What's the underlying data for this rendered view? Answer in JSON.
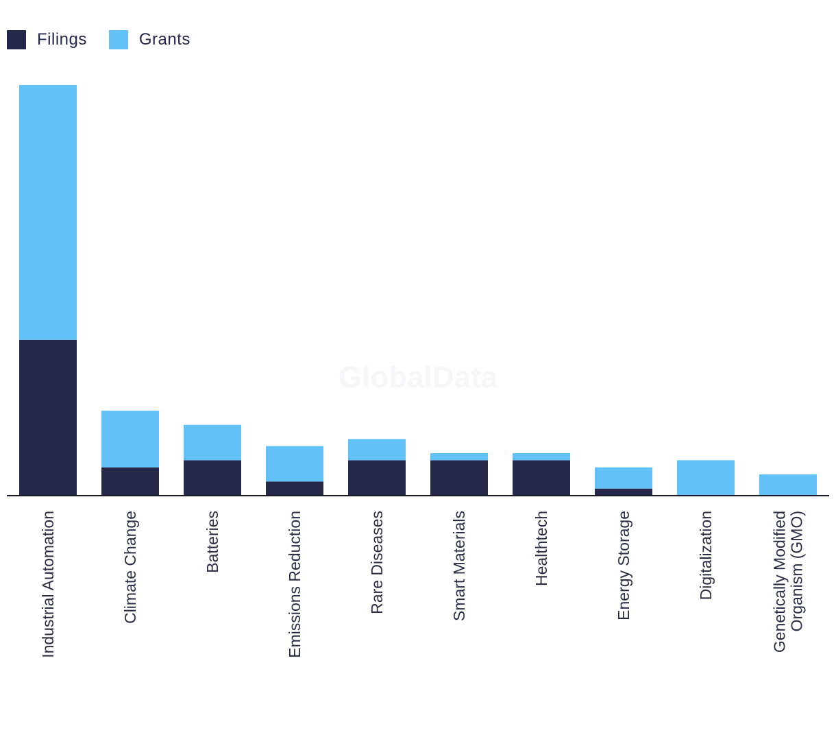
{
  "watermark": "GlobalData",
  "colors": {
    "filings": "#26284a",
    "grants": "#62c2f8",
    "axis": "#1a1a2a"
  },
  "legend": [
    {
      "label": "Filings",
      "color": "#26284a"
    },
    {
      "label": "Grants",
      "color": "#62c2f8"
    }
  ],
  "chart_data": {
    "type": "bar",
    "stacked": true,
    "title": "",
    "xlabel": "",
    "ylabel": "",
    "ylim": [
      0,
      58
    ],
    "categories": [
      "Industrial Automation",
      "Climate Change",
      "Batteries",
      "Emissions Reduction",
      "Rare Diseases",
      "Smart Materials",
      "Healthtech",
      "Energy Storage",
      "Digitalization",
      "Genetically Modified Organism (GMO)"
    ],
    "series": [
      {
        "name": "Filings",
        "values": [
          22,
          4,
          5,
          2,
          5,
          5,
          5,
          1,
          0,
          0
        ]
      },
      {
        "name": "Grants",
        "values": [
          36,
          8,
          5,
          5,
          3,
          1,
          1,
          3,
          5,
          3
        ]
      }
    ]
  }
}
